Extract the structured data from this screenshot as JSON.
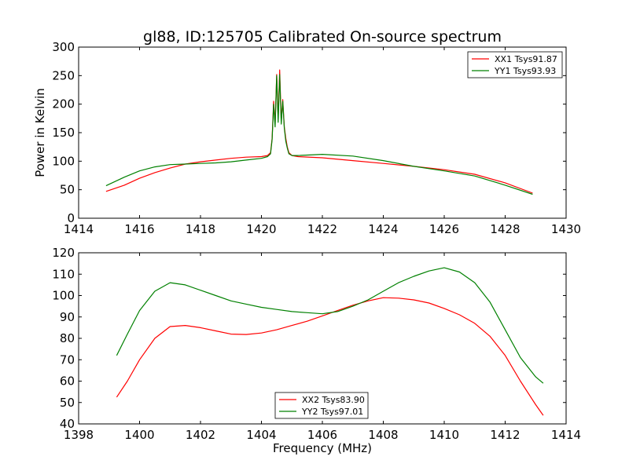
{
  "chart_data": [
    {
      "type": "line",
      "title": "gl88, ID:125705 Calibrated On-source spectrum",
      "xlabel": "",
      "ylabel": "Power in Kelvin",
      "xlim": [
        1414,
        1430
      ],
      "ylim": [
        0,
        300
      ],
      "xticks": [
        "1414",
        "1416",
        "1418",
        "1420",
        "1422",
        "1424",
        "1426",
        "1428",
        "1430"
      ],
      "yticks": [
        "0",
        "50",
        "100",
        "150",
        "200",
        "250",
        "300"
      ],
      "legend_position": "top-right",
      "series": [
        {
          "name": "XX1 Tsys91.87",
          "color": "#ff0000",
          "x": [
            1414.9,
            1415.5,
            1416.0,
            1416.5,
            1417.0,
            1417.5,
            1418.0,
            1418.5,
            1419.0,
            1419.5,
            1420.0,
            1420.2,
            1420.3,
            1420.35,
            1420.4,
            1420.45,
            1420.5,
            1420.55,
            1420.6,
            1420.65,
            1420.7,
            1420.75,
            1420.8,
            1420.85,
            1420.9,
            1421.0,
            1421.2,
            1422.0,
            1423.0,
            1424.0,
            1425.0,
            1426.0,
            1427.0,
            1428.0,
            1428.9
          ],
          "y": [
            47,
            58,
            70,
            80,
            88,
            95,
            99,
            102,
            105,
            107,
            108,
            110,
            115,
            140,
            205,
            165,
            252,
            175,
            260,
            170,
            208,
            160,
            140,
            125,
            115,
            110,
            108,
            106,
            101,
            96,
            91,
            85,
            77,
            62,
            44
          ]
        },
        {
          "name": "YY1 Tsys93.93",
          "color": "#008000",
          "x": [
            1414.9,
            1415.5,
            1416.0,
            1416.5,
            1417.0,
            1417.5,
            1418.0,
            1418.5,
            1419.0,
            1419.5,
            1420.0,
            1420.2,
            1420.3,
            1420.35,
            1420.4,
            1420.45,
            1420.5,
            1420.55,
            1420.6,
            1420.65,
            1420.7,
            1420.75,
            1420.8,
            1420.85,
            1420.9,
            1421.0,
            1421.2,
            1422.0,
            1423.0,
            1424.0,
            1425.0,
            1426.0,
            1427.0,
            1428.0,
            1428.9
          ],
          "y": [
            57,
            72,
            83,
            90,
            94,
            95,
            96,
            97,
            99,
            102,
            105,
            108,
            113,
            138,
            200,
            160,
            250,
            168,
            252,
            165,
            205,
            158,
            135,
            123,
            113,
            110,
            110,
            112,
            109,
            101,
            91,
            83,
            74,
            58,
            42
          ]
        }
      ]
    },
    {
      "type": "line",
      "title": "",
      "xlabel": "Frequency (MHz)",
      "ylabel": "",
      "xlim": [
        1398,
        1414
      ],
      "ylim": [
        40,
        120
      ],
      "xticks": [
        "1398",
        "1400",
        "1402",
        "1404",
        "1406",
        "1408",
        "1410",
        "1412",
        "1414"
      ],
      "yticks": [
        "40",
        "50",
        "60",
        "70",
        "80",
        "90",
        "100",
        "110",
        "120"
      ],
      "legend_position": "lower-center",
      "series": [
        {
          "name": "XX2 Tsys83.90",
          "color": "#ff0000",
          "x": [
            1399.25,
            1399.6,
            1400.0,
            1400.5,
            1401.0,
            1401.5,
            1402.0,
            1402.5,
            1403.0,
            1403.5,
            1404.0,
            1404.5,
            1405.0,
            1405.5,
            1406.0,
            1406.5,
            1407.0,
            1407.5,
            1408.0,
            1408.5,
            1409.0,
            1409.5,
            1410.0,
            1410.5,
            1411.0,
            1411.5,
            1412.0,
            1412.5,
            1413.0,
            1413.25
          ],
          "y": [
            52.5,
            60,
            70,
            80,
            85.5,
            86,
            85,
            83.5,
            82,
            81.8,
            82.5,
            84,
            86,
            88,
            90.5,
            93,
            95.5,
            97.5,
            99,
            98.8,
            98,
            96.5,
            94,
            91,
            87,
            81,
            72,
            60,
            49,
            44
          ]
        },
        {
          "name": "YY2 Tsys97.01",
          "color": "#008000",
          "x": [
            1399.25,
            1399.6,
            1400.0,
            1400.5,
            1401.0,
            1401.5,
            1402.0,
            1402.5,
            1403.0,
            1403.5,
            1404.0,
            1404.5,
            1405.0,
            1405.5,
            1406.0,
            1406.5,
            1407.0,
            1407.5,
            1408.0,
            1408.5,
            1409.0,
            1409.5,
            1410.0,
            1410.5,
            1411.0,
            1411.5,
            1412.0,
            1412.5,
            1413.0,
            1413.25
          ],
          "y": [
            72,
            82,
            93,
            102,
            106,
            105,
            102.5,
            100,
            97.5,
            96,
            94.5,
            93.5,
            92.5,
            92,
            91.5,
            92.5,
            95,
            98,
            102,
            106,
            109,
            111.5,
            113,
            111,
            106,
            97,
            84,
            71,
            62,
            59
          ]
        }
      ]
    }
  ]
}
